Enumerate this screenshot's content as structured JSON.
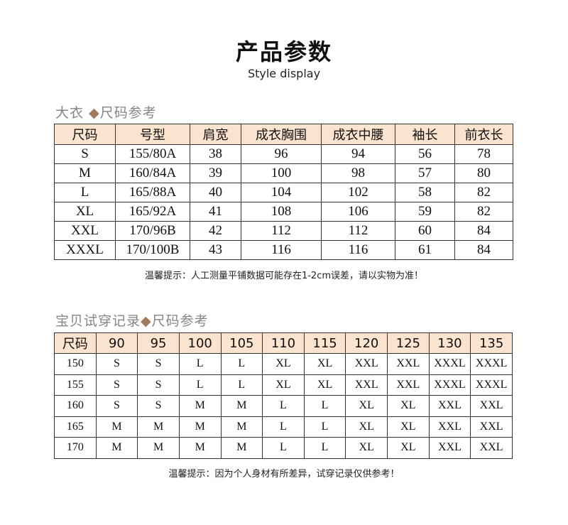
{
  "header": {
    "title": "产品参数",
    "subtitle": "Style display"
  },
  "coat": {
    "section_title": "大衣",
    "section_sep": "◆",
    "section_title2": "尺码参考",
    "columns": [
      "尺码",
      "号型",
      "肩宽",
      "成衣胸围",
      "成衣中腰",
      "袖长",
      "前衣长"
    ],
    "rows": [
      [
        "S",
        "155/80A",
        "38",
        "96",
        "94",
        "56",
        "78"
      ],
      [
        "M",
        "160/84A",
        "39",
        "100",
        "98",
        "57",
        "80"
      ],
      [
        "L",
        "165/88A",
        "40",
        "104",
        "102",
        "58",
        "82"
      ],
      [
        "XL",
        "165/92A",
        "41",
        "108",
        "106",
        "59",
        "82"
      ],
      [
        "XXL",
        "170/96B",
        "42",
        "112",
        "112",
        "60",
        "84"
      ],
      [
        "XXXL",
        "170/100B",
        "43",
        "116",
        "116",
        "61",
        "84"
      ]
    ],
    "note": "温馨提示：人工测量平铺数据可能存在1-2cm误差，请以实物为准！"
  },
  "fit": {
    "section_title": "宝贝试穿记录",
    "section_sep": "◆",
    "section_title2": "尺码参考",
    "columns": [
      "尺码",
      "90",
      "95",
      "100",
      "105",
      "110",
      "115",
      "120",
      "125",
      "130",
      "135"
    ],
    "rows": [
      [
        "150",
        "S",
        "S",
        "L",
        "L",
        "XL",
        "XL",
        "XXL",
        "XXL",
        "XXXL",
        "XXXL"
      ],
      [
        "155",
        "S",
        "S",
        "L",
        "L",
        "XL",
        "XL",
        "XXL",
        "XXL",
        "XXXL",
        "XXXL"
      ],
      [
        "160",
        "S",
        "S",
        "M",
        "M",
        "L",
        "L",
        "XL",
        "XL",
        "XXL",
        "XXL"
      ],
      [
        "165",
        "M",
        "M",
        "M",
        "M",
        "L",
        "L",
        "XL",
        "XL",
        "XXL",
        "XXL"
      ],
      [
        "170",
        "M",
        "M",
        "M",
        "M",
        "L",
        "L",
        "XL",
        "XL",
        "XXL",
        "XXL"
      ]
    ],
    "note": "温馨提示：因为个人身材有所差异，试穿记录仅供参考！"
  },
  "colors": {
    "header_bg": "#fbe4cf",
    "accent": "#a27a5a",
    "section_text": "#8a8580"
  }
}
